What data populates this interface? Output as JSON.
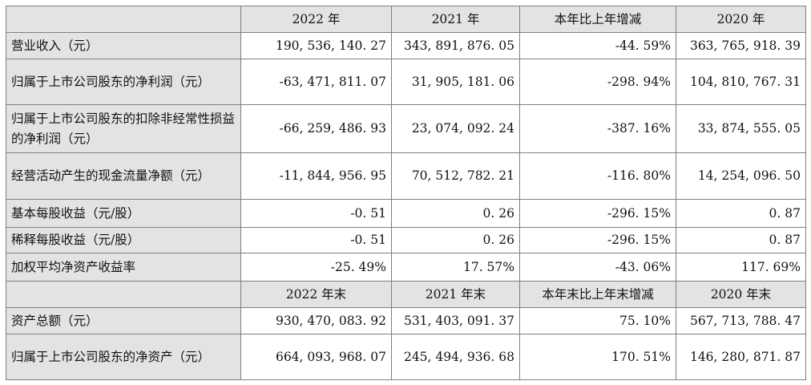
{
  "table": {
    "header1": [
      "",
      "2022 年",
      "2021 年",
      "本年比上年增减",
      "2020 年"
    ],
    "rows1": [
      [
        "营业收入（元）",
        "190, 536, 140. 27",
        "343, 891, 876. 05",
        "-44. 59%",
        "363, 765, 918. 39"
      ],
      [
        "归属于上市公司股东的净利润（元）",
        "-63, 471, 811. 07",
        "31, 905, 181. 06",
        "-298. 94%",
        "104, 810, 767. 31"
      ],
      [
        "归属于上市公司股东的扣除非经常性损益的净利润（元）",
        "-66, 259, 486. 93",
        "23, 074, 092. 24",
        "-387. 16%",
        "33, 874, 555. 05"
      ],
      [
        "经营活动产生的现金流量净额（元）",
        "-11, 844, 956. 95",
        "70, 512, 782. 21",
        "-116. 80%",
        "14, 254, 096. 50"
      ],
      [
        "基本每股收益（元/股）",
        "-0. 51",
        "0. 26",
        "-296. 15%",
        "0. 87"
      ],
      [
        "稀释每股收益（元/股）",
        "-0. 51",
        "0. 26",
        "-296. 15%",
        "0. 87"
      ],
      [
        "加权平均净资产收益率",
        "-25. 49%",
        "17. 57%",
        "-43. 06%",
        "117. 69%"
      ]
    ],
    "header2": [
      "",
      "2022 年末",
      "2021 年末",
      "本年末比上年末增减",
      "2020 年末"
    ],
    "rows2": [
      [
        "资产总额（元）",
        "930, 470, 083. 92",
        "531, 403, 091. 37",
        "75. 10%",
        "567, 713, 788. 47"
      ],
      [
        "归属于上市公司股东的净资产（元）",
        "664, 093, 968. 07",
        "245, 494, 936. 68",
        "170. 51%",
        "146, 280, 871. 87"
      ]
    ]
  }
}
